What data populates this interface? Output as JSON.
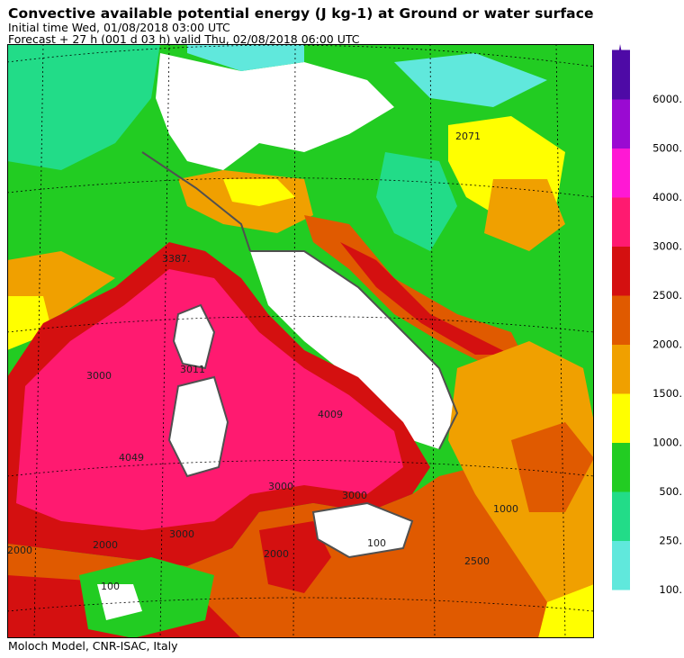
{
  "header": {
    "title": "Convective available potential energy (J kg-1) at Ground or water surface",
    "initial_time": "Initial time  Wed, 01/08/2018  03:00 UTC",
    "forecast": "Forecast  +  27 h  (001 d 03 h)  valid Thu, 02/08/2018 06:00 UTC"
  },
  "footer": "Moloch Model, CNR-ISAC, Italy",
  "legend": {
    "bins": [
      {
        "label": "100.",
        "color": "#60e8dc"
      },
      {
        "label": "250.",
        "color": "#22dc88"
      },
      {
        "label": "500.",
        "color": "#22cc22"
      },
      {
        "label": "1000.",
        "color": "#ffff00"
      },
      {
        "label": "1500.",
        "color": "#f0a000"
      },
      {
        "label": "2000.",
        "color": "#e05a00"
      },
      {
        "label": "2500.",
        "color": "#d41010"
      },
      {
        "label": "3000.",
        "color": "#ff1a70"
      },
      {
        "label": "4000.",
        "color": "#ff18d4"
      },
      {
        "label": "5000.",
        "color": "#9a0ad2"
      },
      {
        "label": "6000.",
        "color": "#4e0aa6"
      }
    ]
  },
  "map": {
    "contour_labels": [
      "3387.",
      "4049",
      "4009",
      "3000",
      "3000",
      "3000",
      "3000",
      "2000",
      "100",
      "100",
      "2071",
      "1000",
      "3011",
      "2500",
      "2000",
      "2000"
    ]
  }
}
